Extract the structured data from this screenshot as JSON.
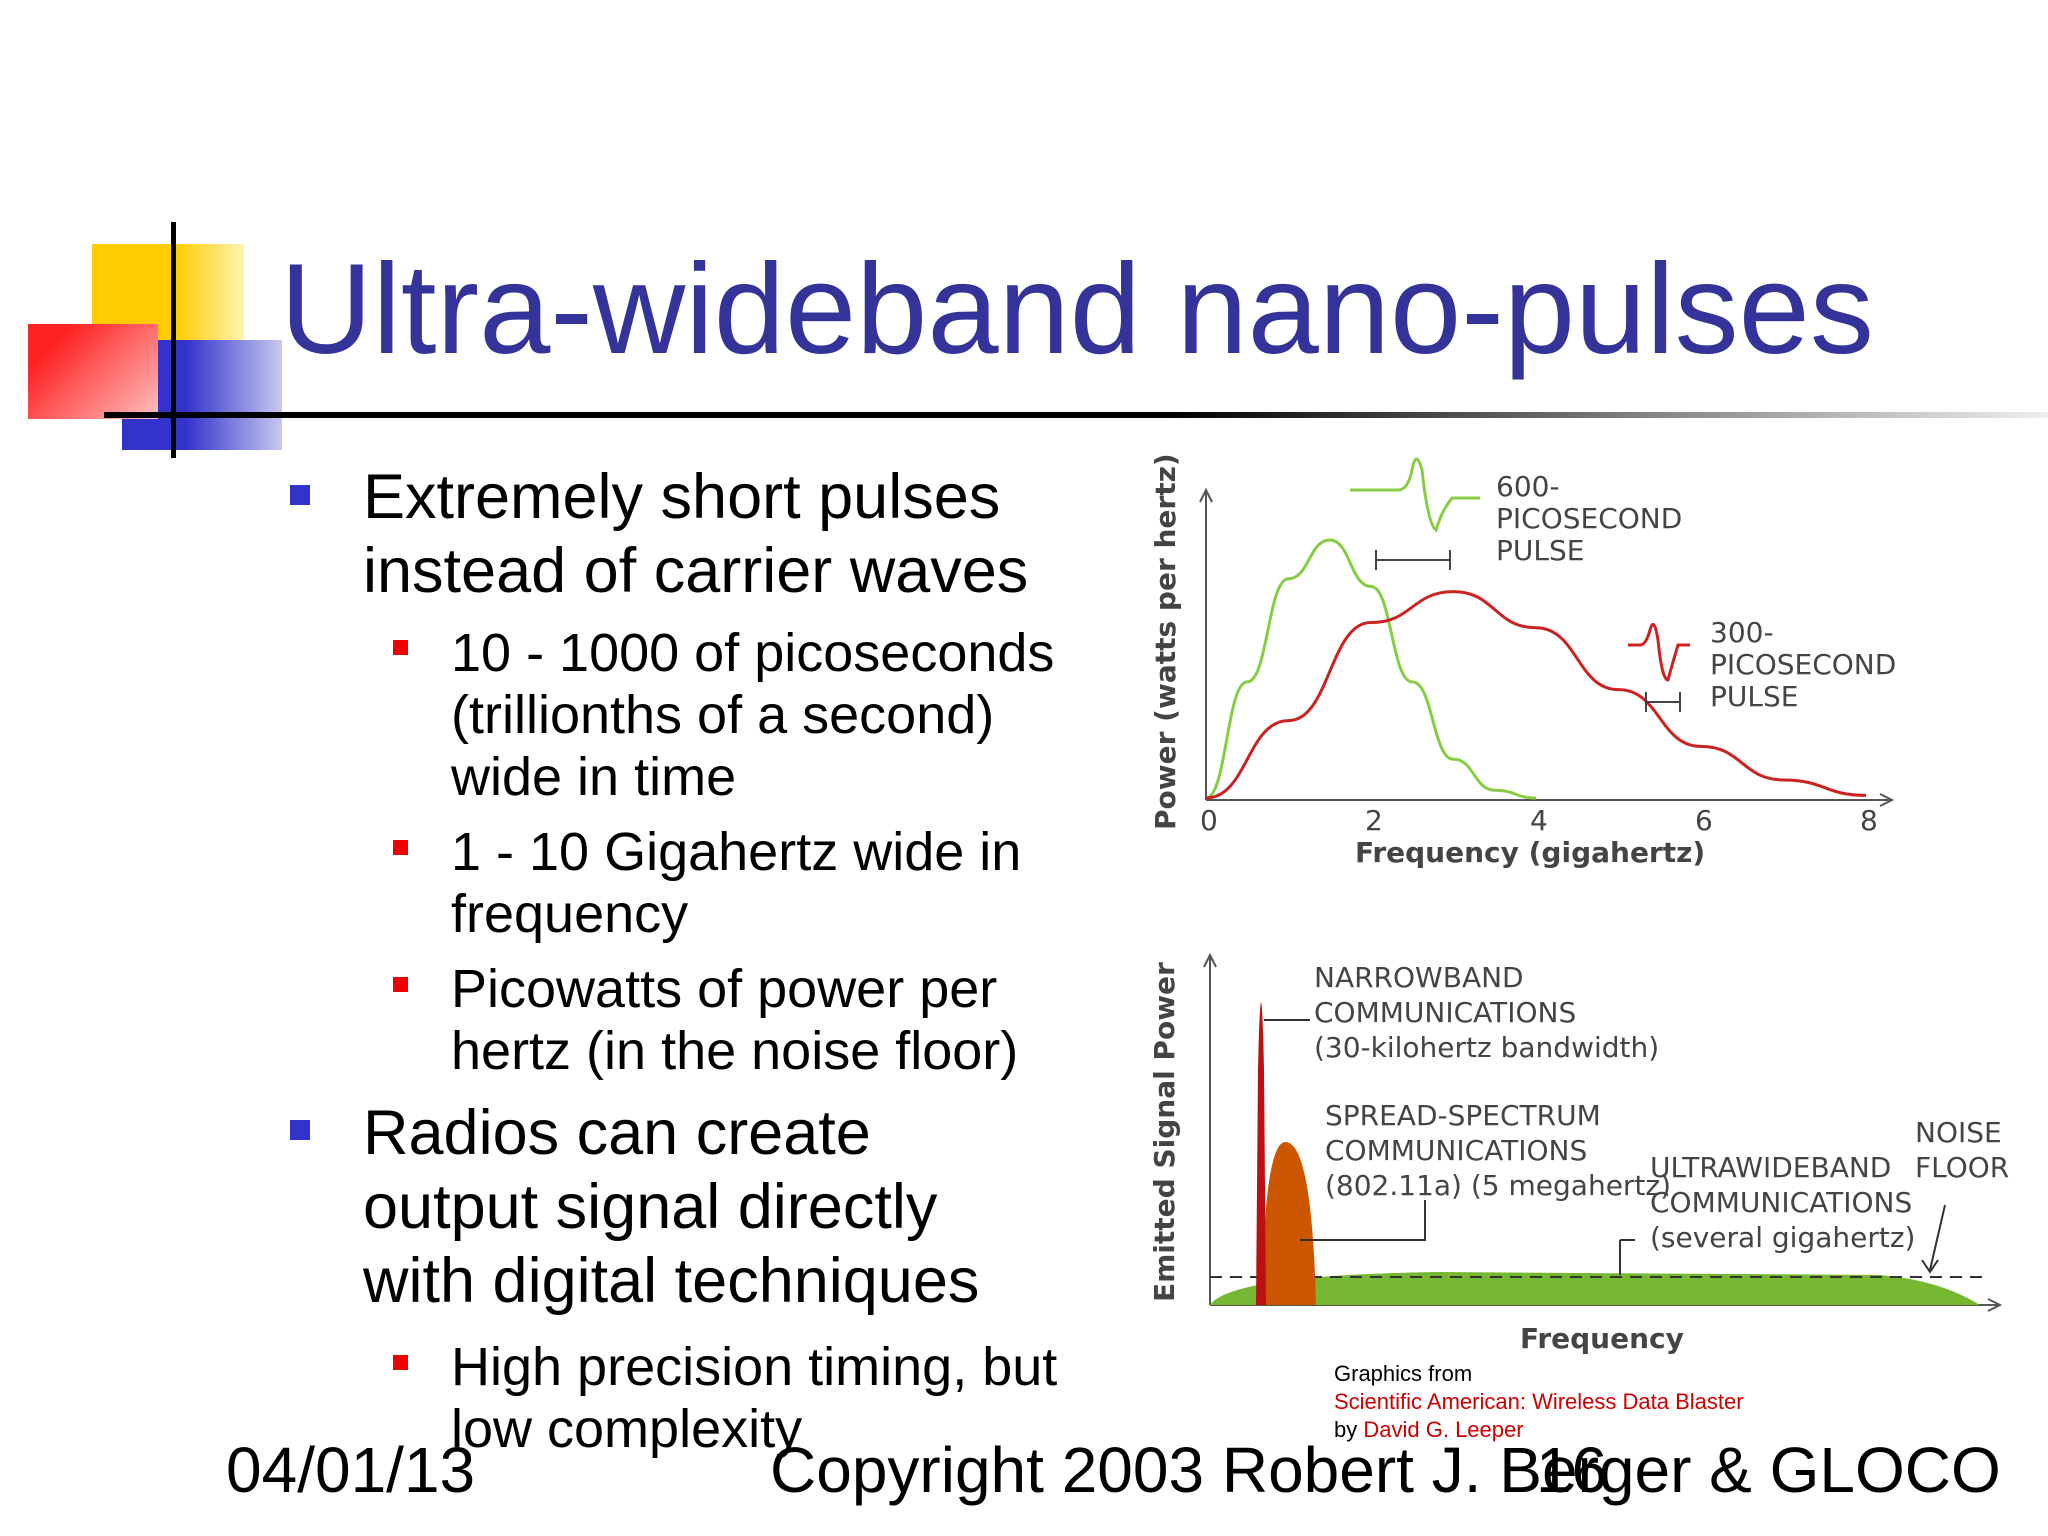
{
  "slide": {
    "title": "Ultra-wideband nano-pulses",
    "bullets": [
      {
        "text": "Extremely short pulses\ninstead of carrier waves",
        "sub": [
          "10 - 1000 of picoseconds\n(trillionths of a second)\nwide in time",
          "1 - 10 Gigahertz wide in\nfrequency",
          "Picowatts of power per\nhertz (in the noise floor)"
        ]
      },
      {
        "text": "Radios can create\noutput signal directly\nwith digital techniques",
        "sub": [
          "High precision timing, but\nlow complexity"
        ]
      }
    ],
    "footer": {
      "date": "04/01/13",
      "copyright": "Copyright 2003 Robert J. Berger & GLOCO",
      "page": "16"
    },
    "credits": {
      "prefix": "Graphics from",
      "source": "Scientific American: Wireless Data Blaster",
      "by": "by",
      "author": "David G. Leeper"
    }
  },
  "chart_data": [
    {
      "type": "line",
      "xlabel": "Frequency (gigahertz)",
      "ylabel": "Power (watts per hertz)",
      "xticks": [
        "0",
        "2",
        "4",
        "6",
        "8"
      ],
      "xlim": [
        0,
        8
      ],
      "series": [
        {
          "name": "600-PICOSECOND PULSE",
          "color": "#88cc44",
          "x": [
            0,
            0.5,
            1.0,
            1.5,
            2.0,
            2.5,
            3.0,
            3.5,
            4.0
          ],
          "y": [
            0,
            0.45,
            0.85,
            1.0,
            0.82,
            0.45,
            0.15,
            0.03,
            0
          ]
        },
        {
          "name": "300-PICOSECOND PULSE",
          "color": "#cc2222",
          "x": [
            0,
            1,
            2,
            3,
            4,
            5,
            6,
            7,
            8
          ],
          "y": [
            0,
            0.3,
            0.68,
            0.8,
            0.66,
            0.42,
            0.2,
            0.07,
            0.01
          ]
        }
      ],
      "annotations": [
        "600-\nPICOSECOND\nPULSE",
        "300-\nPICOSECOND\nPULSE"
      ]
    },
    {
      "type": "area",
      "xlabel": "Frequency",
      "ylabel": "Emitted Signal Power",
      "labels": [
        "NARROWBAND\nCOMMUNICATIONS\n(30-kilohertz bandwidth)",
        "SPREAD-SPECTRUM\nCOMMUNICATIONS\n(802.11a) (5 megahertz)",
        "ULTRAWIDEBAND\nCOMMUNICATIONS\n(several gigahertz)",
        "NOISE\nFLOOR"
      ],
      "colors": {
        "narrowband": "#bb1111",
        "spread": "#cc5500",
        "uwb": "#77b833",
        "noise": "#333333"
      }
    }
  ]
}
